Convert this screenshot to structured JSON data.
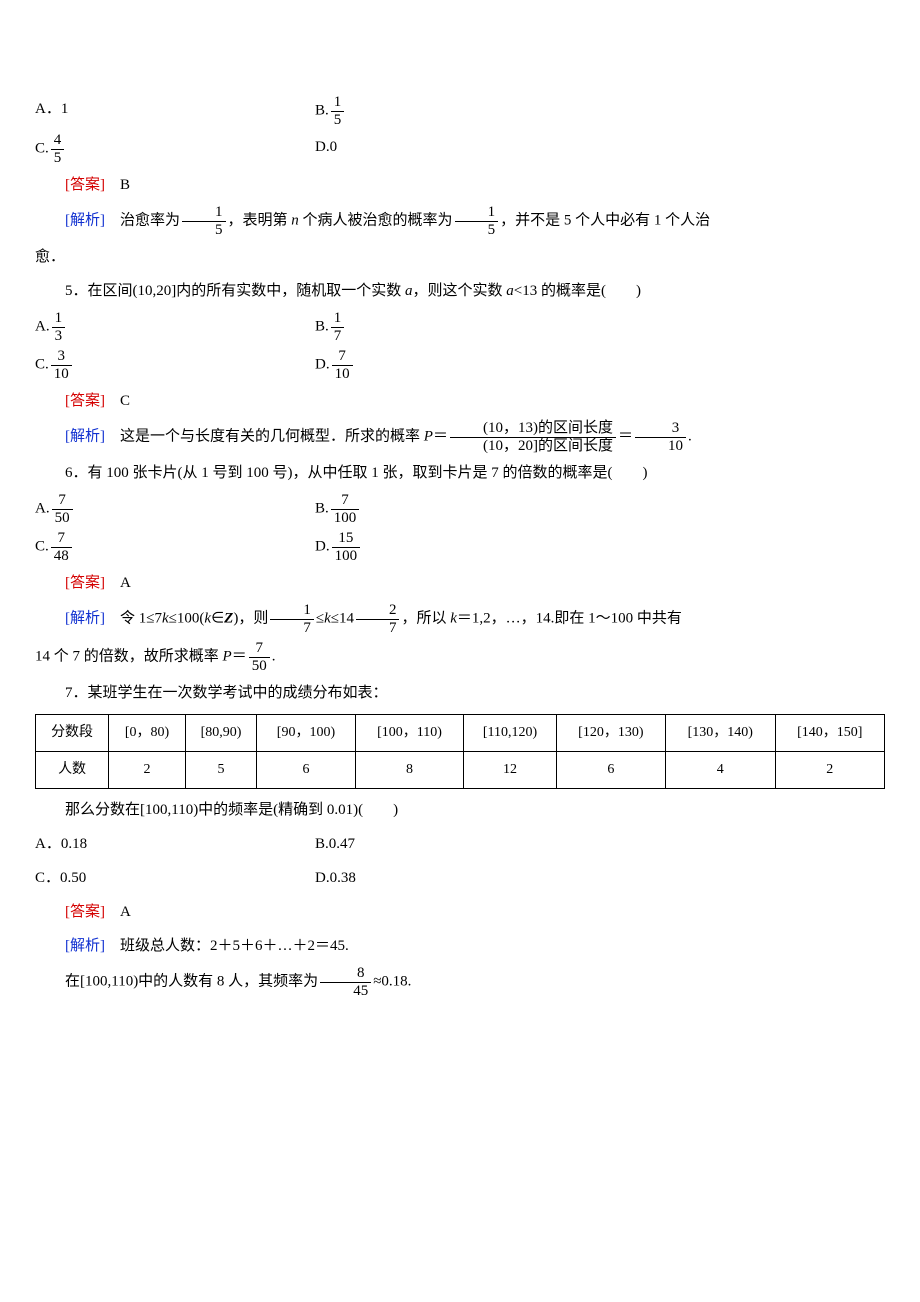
{
  "colors": {
    "answer": "#d40000",
    "parse": "#1030d0",
    "text": "#000000",
    "bg": "#ffffff",
    "border": "#000000"
  },
  "typography": {
    "body_font": "SimSun",
    "math_font": "Times New Roman",
    "body_size_pt": 12,
    "line_height": 2.0
  },
  "labels": {
    "answer": "[答案]",
    "parse": "[解析]"
  },
  "q4": {
    "opts": {
      "A": "A．1",
      "B_pre": "B.",
      "B_num": "1",
      "B_den": "5",
      "C_pre": "C.",
      "C_num": "4",
      "C_den": "5",
      "D": "D.0"
    },
    "answer": "B",
    "parse_pre": "治愈率为",
    "parse_f1_num": "1",
    "parse_f1_den": "5",
    "parse_mid1": "，表明第 ",
    "parse_n": "n",
    "parse_mid2": " 个病人被治愈的概率为",
    "parse_f2_num": "1",
    "parse_f2_den": "5",
    "parse_end": "，并不是 5 个人中必有 1 个人治",
    "parse_line2": "愈．"
  },
  "q5": {
    "stem_pre": "5．在区间(10,20]内的所有实数中，随机取一个实数 ",
    "stem_a1": "a",
    "stem_mid": "，则这个实数 ",
    "stem_a2": "a",
    "stem_end": "<13 的概率是(　　)",
    "opts": {
      "A_pre": "A.",
      "A_num": "1",
      "A_den": "3",
      "B_pre": "B.",
      "B_num": "1",
      "B_den": "7",
      "C_pre": "C.",
      "C_num": "3",
      "C_den": "10",
      "D_pre": "D.",
      "D_num": "7",
      "D_den": "10"
    },
    "answer": "C",
    "parse_text": "这是一个与长度有关的几何概型．所求的概率 ",
    "parse_P": "P",
    "parse_eq": "＝",
    "parse_bigfrac_num": "(10，13)的区间长度",
    "parse_bigfrac_den": "(10，20]的区间长度",
    "parse_eq2": "＝",
    "parse_rnum": "3",
    "parse_rden": "10",
    "parse_dot": "."
  },
  "q6": {
    "stem": "6．有 100 张卡片(从 1 号到 100 号)，从中任取 1 张，取到卡片是 7 的倍数的概率是(　　)",
    "opts": {
      "A_pre": "A.",
      "A_num": "7",
      "A_den": "50",
      "B_pre": "B.",
      "B_num": "7",
      "B_den": "100",
      "C_pre": "C.",
      "C_num": "7",
      "C_den": "48",
      "D_pre": "D.",
      "D_num": "15",
      "D_den": "100"
    },
    "answer": "A",
    "parse_pre": "令 1≤7",
    "parse_k1": "k",
    "parse_mid1": "≤100(",
    "parse_k2": "k",
    "parse_mid2": "∈",
    "parse_Z": "Z",
    "parse_mid3": ")，则",
    "parse_f1_num": "1",
    "parse_f1_den": "7",
    "parse_le1": "≤",
    "parse_k3": "k",
    "parse_le2": "≤14",
    "parse_f2_num": "2",
    "parse_f2_den": "7",
    "parse_mid4": "，所以 ",
    "parse_k4": "k",
    "parse_end1": "＝1,2，…，14.即在 1～100 中共有",
    "parse_line2_pre": "14 个 7 的倍数，故所求概率 ",
    "parse_P": "P",
    "parse_eq": "＝",
    "parse_rnum": "7",
    "parse_rden": "50",
    "parse_dot": "."
  },
  "q7": {
    "stem": "7．某班学生在一次数学考试中的成绩分布如表：",
    "table": {
      "row_header": "分数段",
      "cols": [
        "[0，80)",
        "[80,90)",
        "[90，100)",
        "[100，110)",
        "[110,120)",
        "[120，130)",
        "[130，140)",
        "[140，150]"
      ],
      "row2_header": "人数",
      "counts": [
        "2",
        "5",
        "6",
        "8",
        "12",
        "6",
        "4",
        "2"
      ]
    },
    "sub": "那么分数在[100,110)中的频率是(精确到 0.01)(　　)",
    "opts": {
      "A": "A．0.18",
      "B": "B.0.47",
      "C": "C．0.50",
      "D": "D.0.38"
    },
    "answer": "A",
    "parse1": "班级总人数：2＋5＋6＋…＋2＝45.",
    "parse2_pre": "在[100,110)中的人数有 8 人，其频率为",
    "parse2_num": "8",
    "parse2_den": "45",
    "parse2_end": "≈0.18."
  }
}
